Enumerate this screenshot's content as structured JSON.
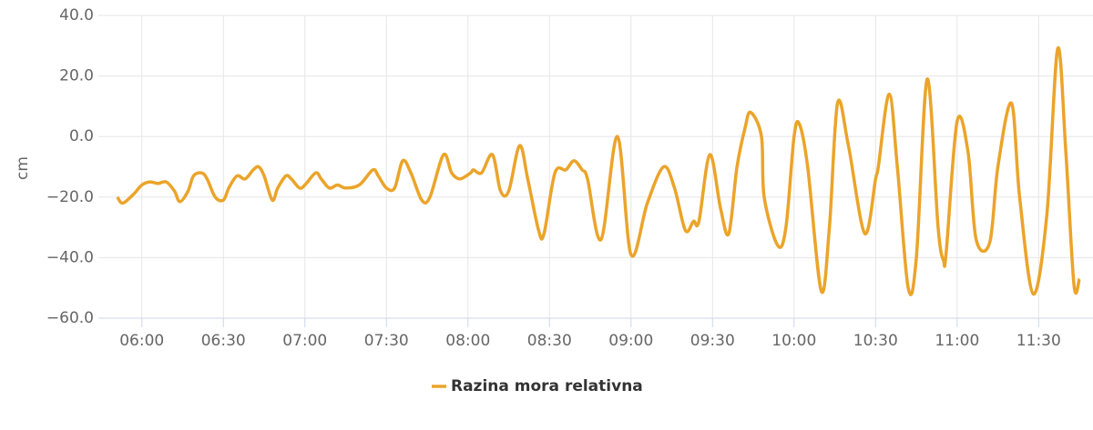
{
  "chart_data": {
    "type": "line",
    "y_label": "cm",
    "x": [
      "05:51",
      "05:53",
      "05:57",
      "06:00",
      "06:03",
      "06:06",
      "06:09",
      "06:12",
      "06:14",
      "06:17",
      "06:19",
      "06:22",
      "06:24",
      "06:27",
      "06:30",
      "06:32",
      "06:35",
      "06:38",
      "06:41",
      "06:43",
      "06:45",
      "06:48",
      "06:50",
      "06:53",
      "06:55",
      "06:58",
      "07:00",
      "07:04",
      "07:06",
      "07:09",
      "07:12",
      "07:15",
      "07:20",
      "07:25",
      "07:27",
      "07:30",
      "07:33",
      "07:36",
      "07:39",
      "07:43",
      "07:46",
      "07:51",
      "07:54",
      "07:57",
      "08:01",
      "08:02",
      "08:05",
      "08:09",
      "08:12",
      "08:15",
      "08:19",
      "08:22",
      "08:26",
      "08:28",
      "08:32",
      "08:36",
      "08:39",
      "08:42",
      "08:44",
      "08:49",
      "08:55",
      "09:00",
      "09:06",
      "09:12",
      "09:16",
      "09:20",
      "09:23",
      "09:25",
      "09:29",
      "09:33",
      "09:36",
      "09:39",
      "09:42",
      "09:44",
      "09:48",
      "09:49",
      "09:54",
      "09:57",
      "10:00",
      "10:02",
      "10:05",
      "10:10",
      "10:13",
      "10:16",
      "10:20",
      "10:26",
      "10:30",
      "10:31",
      "10:35",
      "10:38",
      "10:42",
      "10:45",
      "10:49",
      "10:53",
      "10:55",
      "10:56",
      "11:00",
      "11:04",
      "11:07",
      "11:12",
      "11:15",
      "11:20",
      "11:23",
      "11:28",
      "11:33",
      "11:37",
      "11:40",
      "11:43",
      "11:45"
    ],
    "series": [
      {
        "name": "Razina mora relativna",
        "color": "#eba42a",
        "values": [
          -20,
          -22,
          -19,
          -16,
          -15,
          -15.5,
          -15,
          -18,
          -21.5,
          -18,
          -13,
          -12,
          -14,
          -20,
          -21,
          -17,
          -13,
          -14,
          -11,
          -10,
          -13,
          -21,
          -17,
          -13,
          -14,
          -17,
          -16,
          -12,
          -14,
          -17,
          -16,
          -17,
          -16,
          -11,
          -13,
          -17,
          -17,
          -8,
          -12,
          -21,
          -20,
          -6,
          -12,
          -14,
          -12,
          -11,
          -12,
          -6,
          -18,
          -18,
          -3,
          -14,
          -31,
          -32,
          -12,
          -11,
          -8,
          -11,
          -14,
          -34,
          0,
          -39,
          -22,
          -10,
          -17,
          -31,
          -28,
          -28,
          -6,
          -24,
          -32,
          -10,
          3,
          8,
          0,
          -20,
          -36,
          -30,
          0,
          4,
          -10,
          -51,
          -30,
          11,
          -3,
          -32,
          -14,
          -10,
          14,
          -10,
          -50,
          -40,
          19,
          -30,
          -41,
          -38,
          5,
          -5,
          -34,
          -35,
          -10,
          11,
          -20,
          -52,
          -26,
          29,
          -5,
          -49,
          -47
        ]
      }
    ],
    "xlim": [
      "05:44",
      "11:50"
    ],
    "xticks": [
      "06:00",
      "06:30",
      "07:00",
      "07:30",
      "08:00",
      "08:30",
      "09:00",
      "09:30",
      "10:00",
      "10:30",
      "11:00",
      "11:30"
    ],
    "ylim": [
      -60,
      40
    ],
    "yticks": [
      {
        "value": -60,
        "label": "−60.0"
      },
      {
        "value": -40,
        "label": "−40.0"
      },
      {
        "value": -20,
        "label": "−20.0"
      },
      {
        "value": 0,
        "label": "0.0"
      },
      {
        "value": 20,
        "label": "20.0"
      },
      {
        "value": 40,
        "label": "40.0"
      }
    ],
    "grid": true,
    "legend": "bottom"
  }
}
